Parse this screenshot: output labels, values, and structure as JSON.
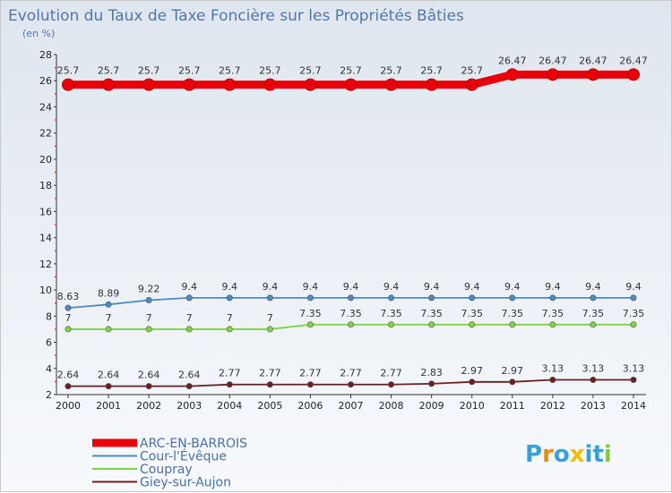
{
  "chart_data": {
    "type": "line",
    "title": "Evolution du Taux de Taxe Foncière sur les Propriétés Bâties",
    "ylabel": "(en %)",
    "xlabel": "",
    "ylim": [
      2,
      28
    ],
    "yticks": [
      2,
      4,
      6,
      8,
      10,
      12,
      14,
      16,
      18,
      20,
      22,
      24,
      26,
      28
    ],
    "categories": [
      "2000",
      "2001",
      "2002",
      "2003",
      "2004",
      "2005",
      "2006",
      "2007",
      "2008",
      "2009",
      "2010",
      "2011",
      "2012",
      "2013",
      "2014"
    ],
    "series": [
      {
        "name": "ARC-EN-BARROIS",
        "color": "#e8000b",
        "values": [
          25.7,
          25.7,
          25.7,
          25.7,
          25.7,
          25.7,
          25.7,
          25.7,
          25.7,
          25.7,
          25.7,
          26.47,
          26.47,
          26.47,
          26.47
        ],
        "labels": [
          "25.7",
          "25.7",
          "25.7",
          "25.7",
          "25.7",
          "25.7",
          "25.7",
          "25.7",
          "25.7",
          "25.7",
          "25.7",
          "26.47",
          "26.47",
          "26.47",
          "26.47"
        ]
      },
      {
        "name": "Cour-l'Évêque",
        "color": "#4a8bc4",
        "values": [
          8.63,
          8.89,
          9.22,
          9.4,
          9.4,
          9.4,
          9.4,
          9.4,
          9.4,
          9.4,
          9.4,
          9.4,
          9.4,
          9.4,
          9.4
        ],
        "labels": [
          "8.63",
          "8.89",
          "9.22",
          "9.4",
          "9.4",
          "9.4",
          "9.4",
          "9.4",
          "9.4",
          "9.4",
          "9.4",
          "9.4",
          "9.4",
          "9.4",
          "9.4"
        ]
      },
      {
        "name": "Coupray",
        "color": "#7ed348",
        "values": [
          7,
          7,
          7,
          7,
          7,
          7,
          7.35,
          7.35,
          7.35,
          7.35,
          7.35,
          7.35,
          7.35,
          7.35,
          7.35
        ],
        "labels": [
          "7",
          "7",
          "7",
          "7",
          "7",
          "7",
          "7.35",
          "7.35",
          "7.35",
          "7.35",
          "7.35",
          "7.35",
          "7.35",
          "7.35",
          "7.35"
        ]
      },
      {
        "name": "Giey-sur-Aujon",
        "color": "#6b1f1f",
        "values": [
          2.64,
          2.64,
          2.64,
          2.64,
          2.77,
          2.77,
          2.77,
          2.77,
          2.77,
          2.83,
          2.97,
          2.97,
          3.13,
          3.13,
          3.13
        ],
        "labels": [
          "2.64",
          "2.64",
          "2.64",
          "2.64",
          "2.77",
          "2.77",
          "2.77",
          "2.77",
          "2.77",
          "2.83",
          "2.97",
          "2.97",
          "3.13",
          "3.13",
          "3.13"
        ]
      }
    ],
    "legend_position": "bottom-left",
    "grid": false
  },
  "logo": {
    "text": "Proxiti",
    "colors": [
      "#3aa0d8",
      "#f08a00",
      "#3aa0d8",
      "#f0c000",
      "#3aa0d8",
      "#3aa0d8",
      "#8cc63f"
    ]
  }
}
